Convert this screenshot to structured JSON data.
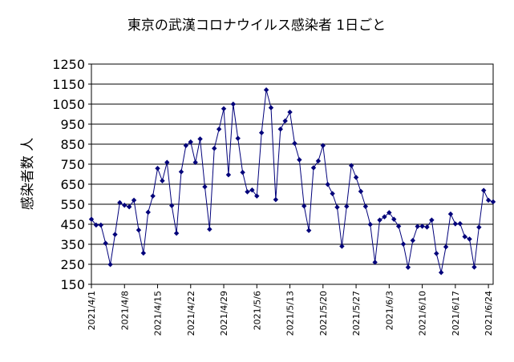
{
  "chart_data": {
    "type": "line",
    "title": "東京の武漢コロナウイルス感染者 1日ごと",
    "ylabel": "感染者数 人",
    "xlabel": "",
    "ylim": [
      150,
      1250
    ],
    "yticks": [
      150,
      250,
      350,
      450,
      550,
      650,
      750,
      850,
      950,
      1050,
      1150,
      1250
    ],
    "grid": true,
    "legend": "none",
    "x_tick_labels": [
      "2021/4/1",
      "2021/4/8",
      "2021/4/15",
      "2021/4/22",
      "2021/4/29",
      "2021/5/6",
      "2021/5/13",
      "2021/5/20",
      "2021/5/27",
      "2021/6/3",
      "2021/6/10",
      "2021/6/17",
      "2021/6/24"
    ],
    "x_tick_every": 7,
    "series": [
      {
        "color": "#00007a",
        "values": [
          475,
          446,
          446,
          355,
          249,
          399,
          558,
          545,
          537,
          570,
          421,
          306,
          510,
          591,
          729,
          667,
          759,
          543,
          405,
          712,
          843,
          861,
          759,
          876,
          637,
          425,
          829,
          925,
          1027,
          697,
          1050,
          879,
          709,
          612,
          621,
          591,
          907,
          1121,
          1032,
          573,
          925,
          966,
          1010,
          854,
          772,
          541,
          419,
          732,
          766,
          843,
          649,
          603,
          535,
          340,
          539,
          743,
          684,
          614,
          539,
          449,
          260,
          471,
          487,
          508,
          475,
          440,
          351,
          235,
          369,
          439,
          440,
          436,
          471,
          304,
          209,
          337,
          501,
          452,
          453,
          388,
          376,
          236,
          435,
          619,
          570,
          562
        ]
      }
    ]
  }
}
